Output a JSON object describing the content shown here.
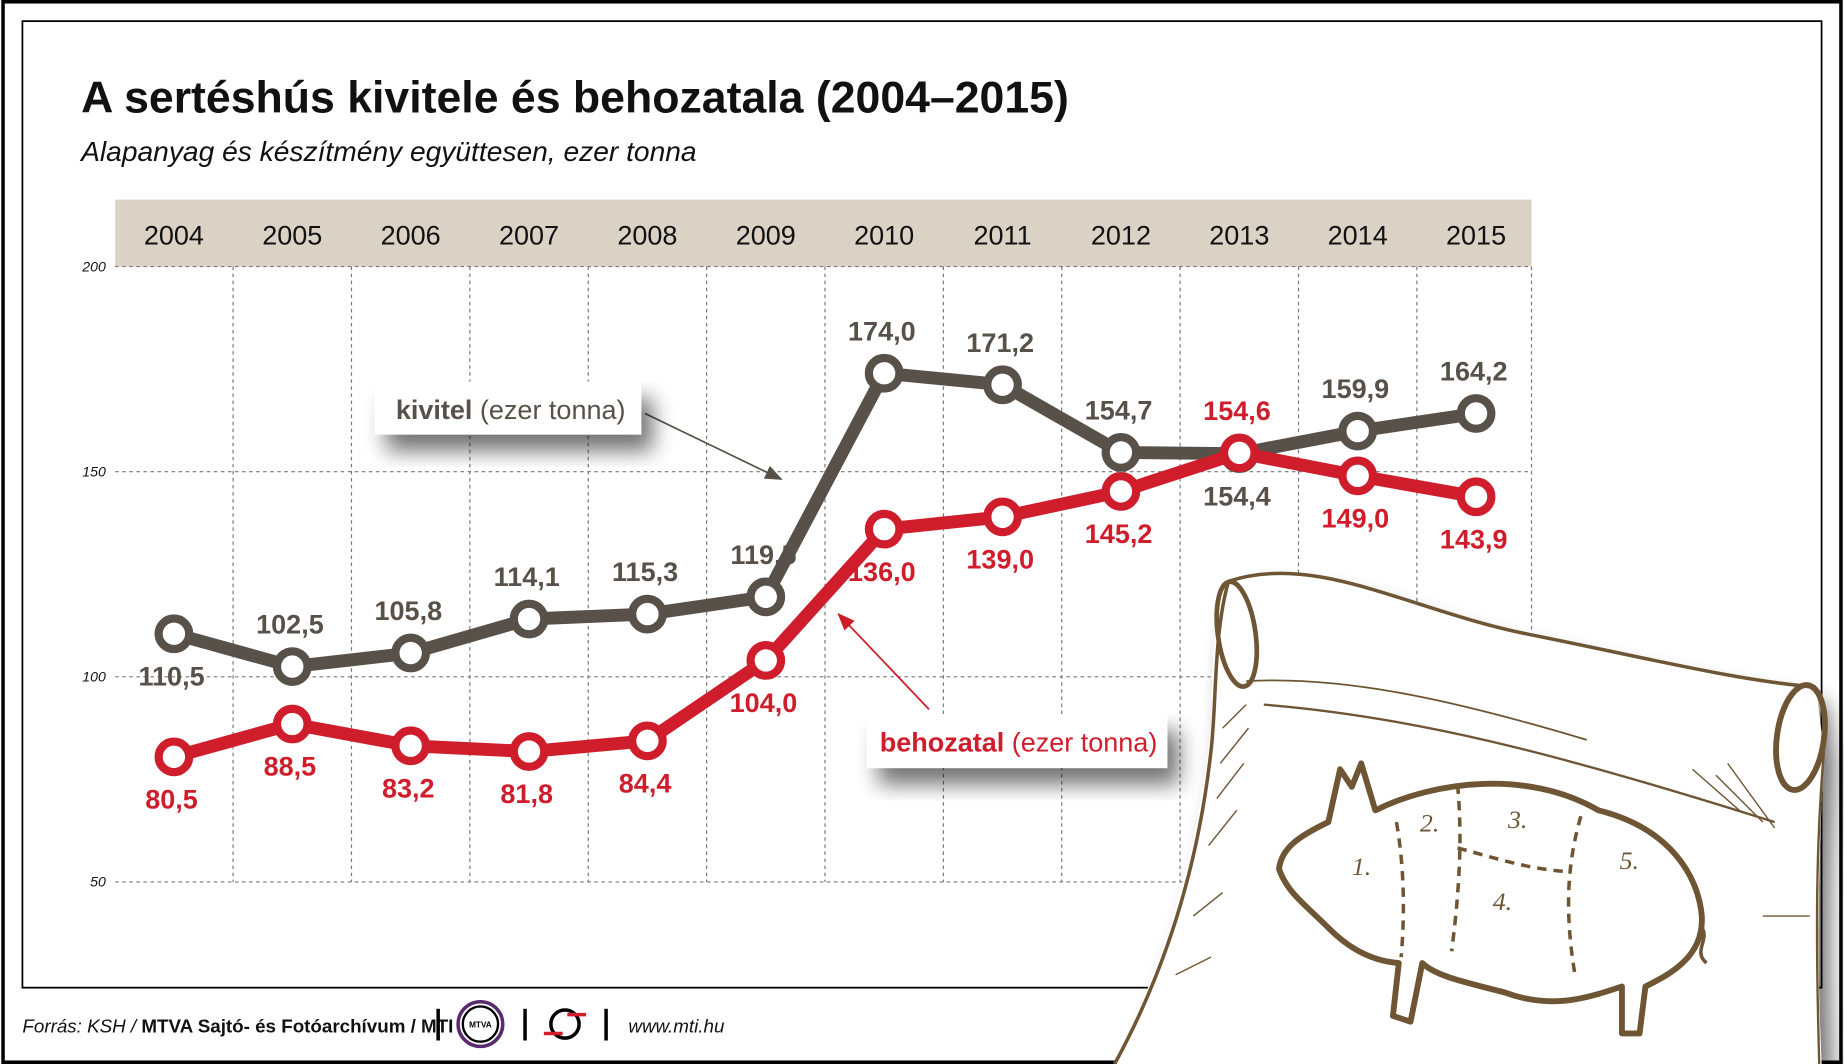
{
  "title": "A sertéshús kivitele és behozatala (2004–2015)",
  "subtitle": "Alapanyag és készítmény együttesen, ezer tonna",
  "footer": {
    "source_prefix": "Forrás: KSH / ",
    "source_bold": "MTVA Sajtó- és Fotóarchívum / MTI",
    "logo_mtva": "MTVA",
    "url": "www.mti.hu"
  },
  "callouts": {
    "kivitel_bold": "kivitel",
    "kivitel_unit": " (ezer tonna)",
    "behozatal_bold": "behozatal",
    "behozatal_unit": " (ezer tonna)"
  },
  "illustration": {
    "cuts": [
      "1.",
      "2.",
      "3.",
      "4.",
      "5."
    ]
  },
  "colors": {
    "kivitel": "#57514a",
    "behozatal": "#cf1d2c",
    "header_band": "#d9d2c5",
    "scroll_ink": "#6e5634"
  },
  "chart_data": {
    "type": "line",
    "title": "A sertéshús kivitele és behozatala (2004–2015)",
    "subtitle": "Alapanyag és készítmény együttesen, ezer tonna",
    "categories": [
      "2004",
      "2005",
      "2006",
      "2007",
      "2008",
      "2009",
      "2010",
      "2011",
      "2012",
      "2013",
      "2014",
      "2015"
    ],
    "ylim": [
      50,
      200
    ],
    "yticks": [
      50,
      100,
      150,
      200
    ],
    "grid": true,
    "series": [
      {
        "name": "kivitel",
        "values": [
          110.5,
          102.5,
          105.8,
          114.1,
          115.3,
          119.5,
          174.0,
          171.2,
          154.7,
          154.4,
          159.9,
          164.2
        ],
        "labels": [
          "110,5",
          "102,5",
          "105,8",
          "114,1",
          "115,3",
          "119,5",
          "174,0",
          "171,2",
          "154,7",
          "154,4",
          "159,9",
          "164,2"
        ]
      },
      {
        "name": "behozatal",
        "values": [
          80.5,
          88.5,
          83.2,
          81.8,
          84.4,
          104.0,
          136.0,
          139.0,
          145.2,
          154.6,
          149.0,
          143.9
        ],
        "labels": [
          "80,5",
          "88,5",
          "83,2",
          "81,8",
          "84,4",
          "104,0",
          "136,0",
          "139,0",
          "145,2",
          "154,6",
          "149,0",
          "143,9"
        ]
      }
    ]
  }
}
